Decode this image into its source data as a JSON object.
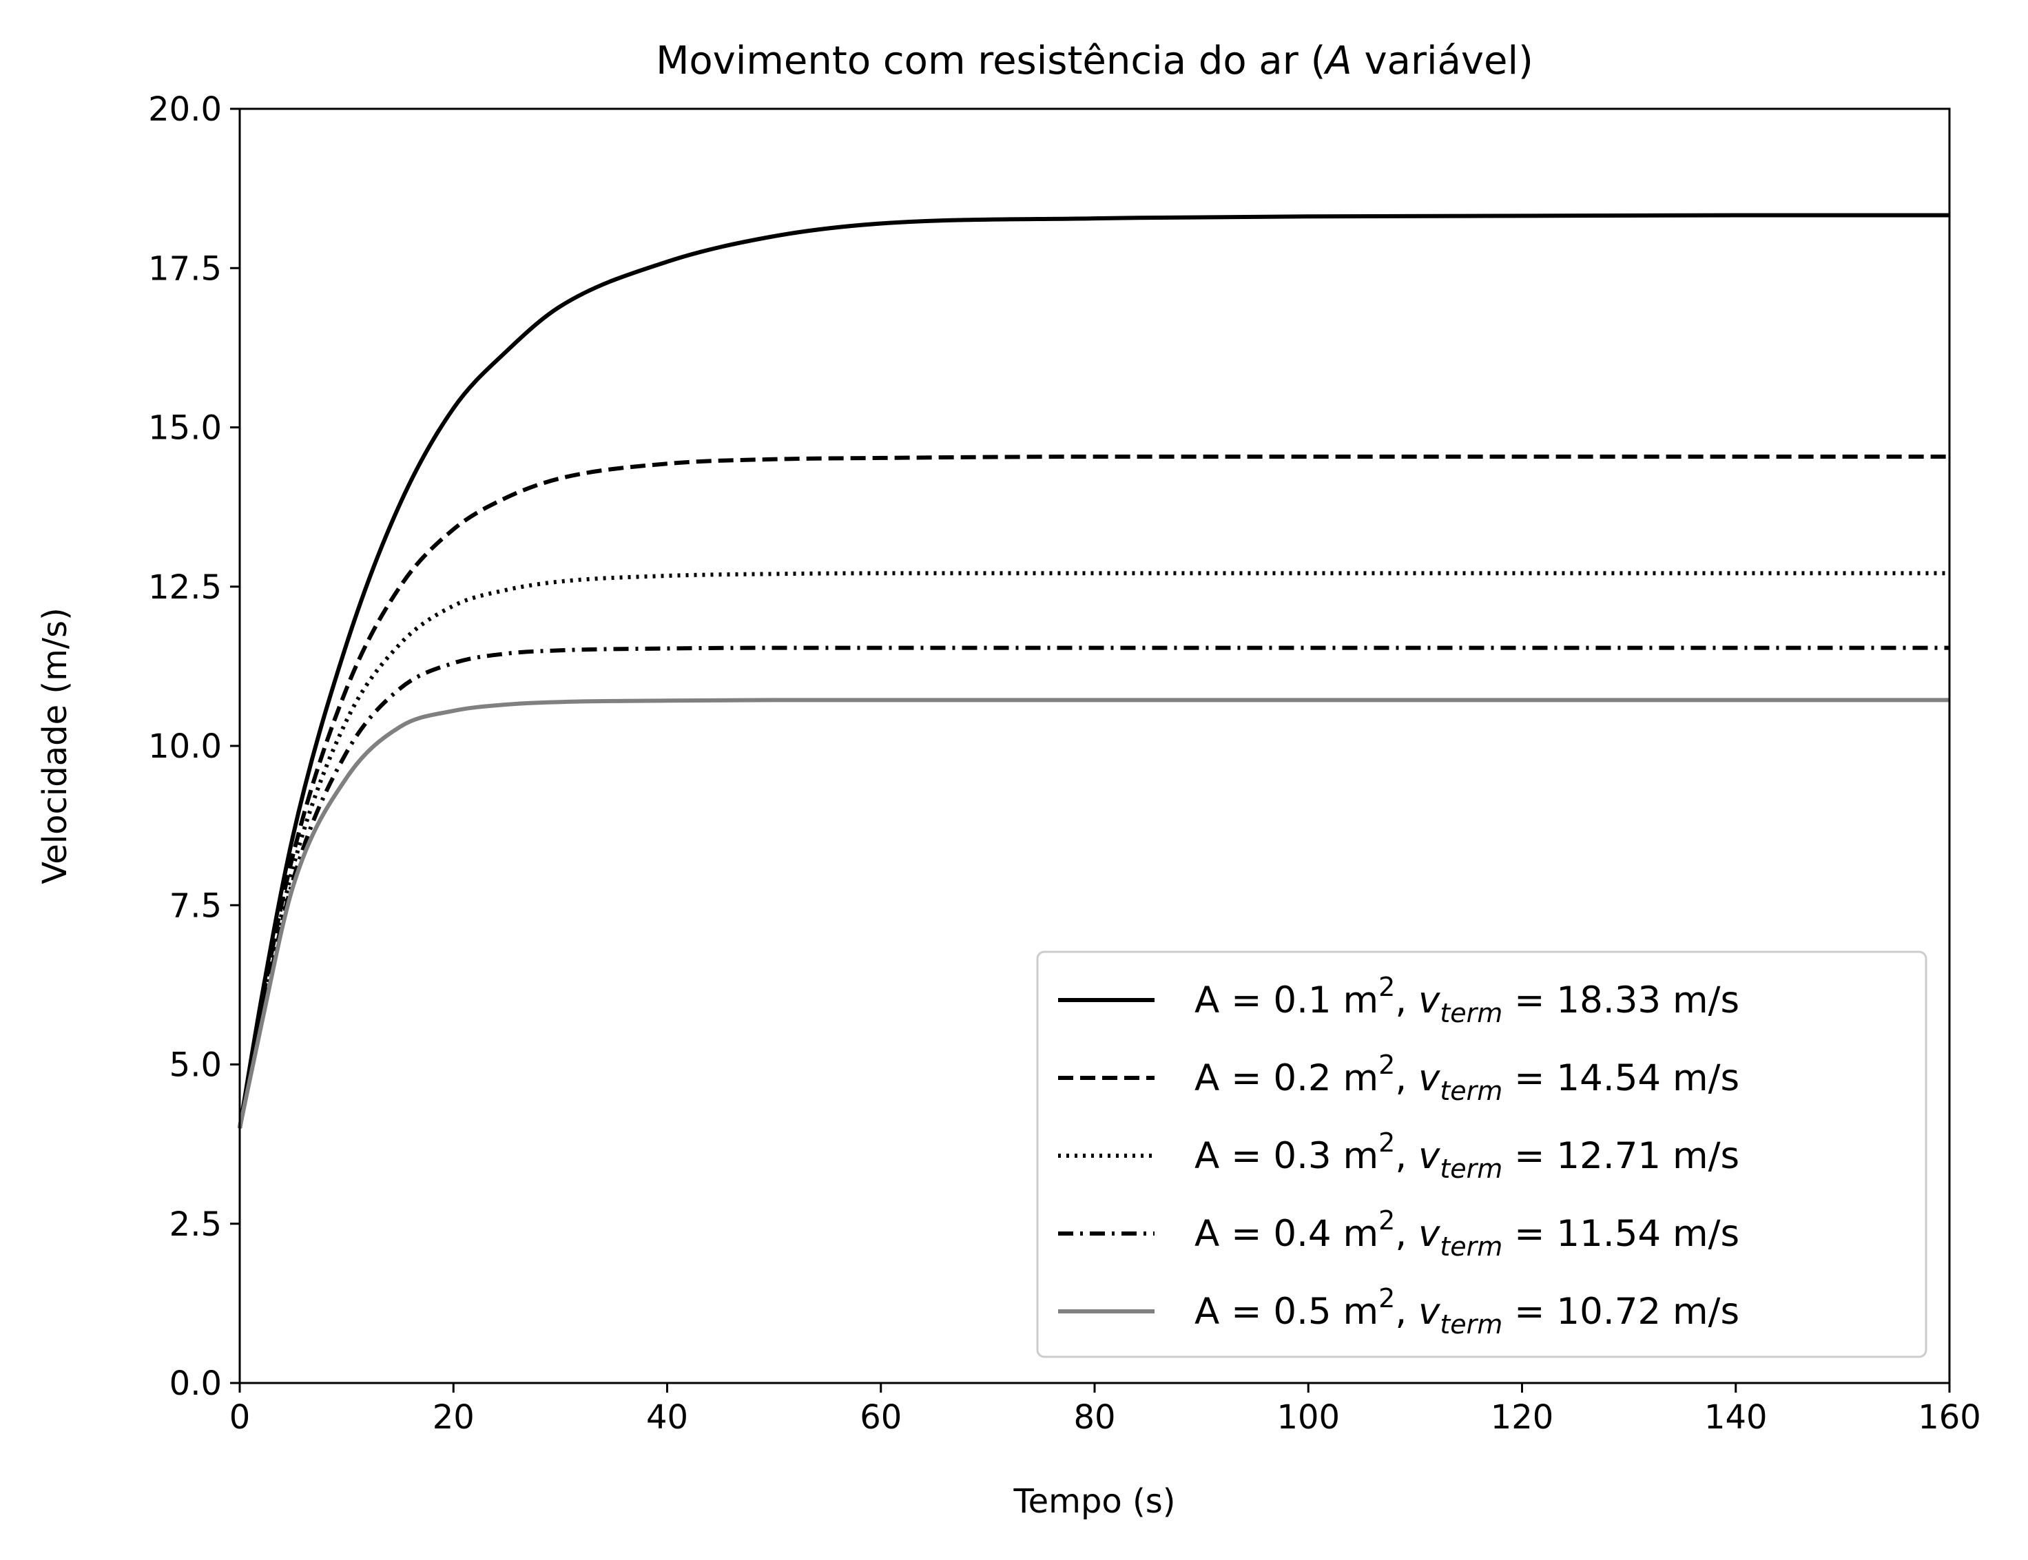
{
  "chart_data": {
    "type": "line",
    "title": "Movimento com resistência do ar (A variável)",
    "title_parts": {
      "before": "Movimento com resistência do ar (",
      "italic": "A",
      "after": " variável)"
    },
    "xlabel": "Tempo (s)",
    "ylabel": "Velocidade (m/s)",
    "xlim": [
      0,
      160
    ],
    "ylim": [
      0,
      20
    ],
    "xticks": [
      0,
      20,
      40,
      60,
      80,
      100,
      120,
      140,
      160
    ],
    "xtick_labels": [
      "0",
      "20",
      "40",
      "60",
      "80",
      "100",
      "120",
      "140",
      "160"
    ],
    "yticks": [
      0,
      2.5,
      5,
      7.5,
      10,
      12.5,
      15,
      17.5,
      20
    ],
    "ytick_labels": [
      "0.0",
      "2.5",
      "5.0",
      "7.5",
      "10.0",
      "12.5",
      "15.0",
      "17.5",
      "20.0"
    ],
    "grid": false,
    "legend_position": "lower-right",
    "series": [
      {
        "name": "A = 0.1 m2, vterm = 18.33 m/s",
        "area": "0.1",
        "vterm": "18.33",
        "style": "solid",
        "color": "#000000",
        "x": [
          0,
          2,
          5,
          10,
          15,
          20,
          25,
          30,
          40,
          50,
          60,
          80,
          100,
          120,
          140,
          160
        ],
        "y": [
          4.0,
          6.0,
          8.6,
          11.6,
          13.8,
          15.3,
          16.2,
          16.9,
          17.6,
          18.0,
          18.2,
          18.28,
          18.31,
          18.32,
          18.33,
          18.33
        ]
      },
      {
        "name": "A = 0.2 m2, vterm = 14.54 m/s",
        "area": "0.2",
        "vterm": "14.54",
        "style": "dashed",
        "color": "#000000",
        "x": [
          0,
          2,
          5,
          10,
          15,
          20,
          25,
          30,
          40,
          50,
          60,
          80,
          100,
          120,
          140,
          160
        ],
        "y": [
          4.0,
          5.9,
          8.3,
          10.9,
          12.5,
          13.4,
          13.9,
          14.2,
          14.43,
          14.5,
          14.52,
          14.54,
          14.54,
          14.54,
          14.54,
          14.54
        ]
      },
      {
        "name": "A = 0.3 m2, vterm = 12.71 m/s",
        "area": "0.3",
        "vterm": "12.71",
        "style": "dotted",
        "color": "#000000",
        "x": [
          0,
          2,
          5,
          10,
          15,
          20,
          25,
          30,
          40,
          50,
          60,
          80,
          100,
          120,
          140,
          160
        ],
        "y": [
          4.0,
          5.8,
          8.1,
          10.4,
          11.6,
          12.2,
          12.45,
          12.58,
          12.67,
          12.7,
          12.71,
          12.71,
          12.71,
          12.71,
          12.71,
          12.71
        ]
      },
      {
        "name": "A = 0.4 m2, vterm = 11.54 m/s",
        "area": "0.4",
        "vterm": "11.54",
        "style": "dashdot",
        "color": "#000000",
        "x": [
          0,
          2,
          5,
          10,
          15,
          20,
          25,
          30,
          40,
          50,
          60,
          80,
          100,
          120,
          140,
          160
        ],
        "y": [
          4.0,
          5.7,
          7.9,
          9.9,
          10.9,
          11.3,
          11.45,
          11.5,
          11.53,
          11.54,
          11.54,
          11.54,
          11.54,
          11.54,
          11.54,
          11.54
        ]
      },
      {
        "name": "A = 0.5 m2, vterm = 10.72 m/s",
        "area": "0.5",
        "vterm": "10.72",
        "style": "solid",
        "color": "#808080",
        "x": [
          0,
          2,
          5,
          10,
          15,
          20,
          25,
          30,
          40,
          50,
          60,
          80,
          100,
          120,
          140,
          160
        ],
        "y": [
          4.0,
          5.6,
          7.8,
          9.5,
          10.3,
          10.55,
          10.65,
          10.69,
          10.71,
          10.72,
          10.72,
          10.72,
          10.72,
          10.72,
          10.72,
          10.72
        ]
      }
    ]
  },
  "legend_strings": {
    "prefix": "A = ",
    "unit_area": " m",
    "sup": "2",
    "comma": ", ",
    "v": "v",
    "sub": "term",
    "eq": " = ",
    "unit_v": " m/s"
  }
}
